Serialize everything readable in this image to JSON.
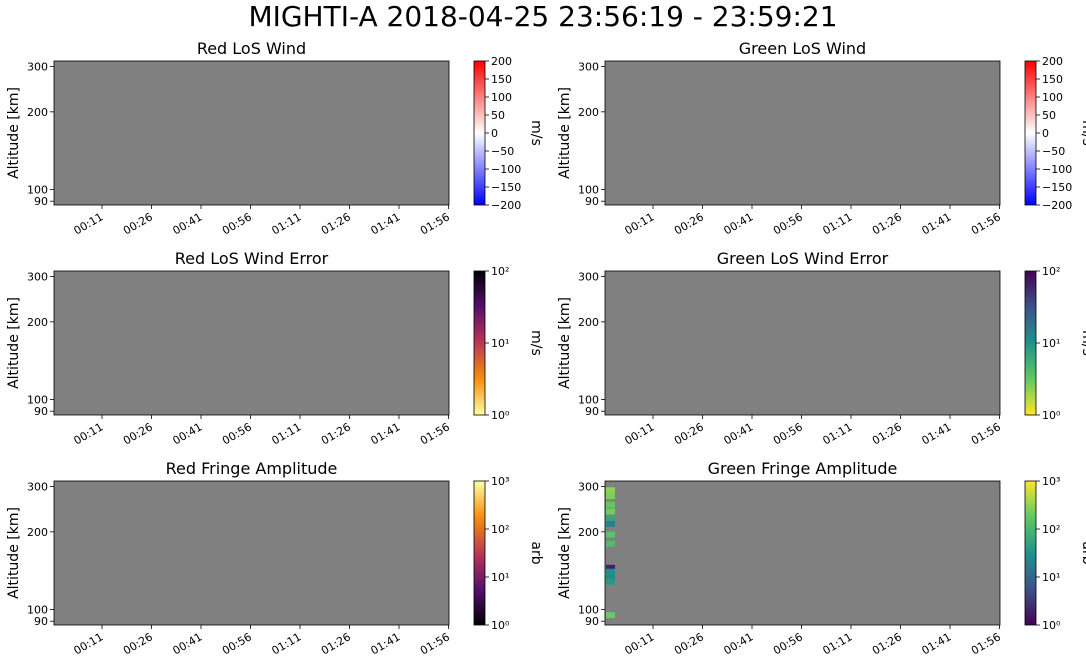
{
  "figure": {
    "title": "MIGHTI-A  2018-04-25 23:56:19 - 23:59:21",
    "background": "#ffffff",
    "axes_facecolor": "#808080"
  },
  "chart_data": [
    {
      "type": "heatmap",
      "title": "Red LoS Wind",
      "ylabel": "Altitude [km]",
      "yticks": [
        "300",
        "200",
        "100",
        "90"
      ],
      "xticks": [
        "00:11",
        "00:26",
        "00:41",
        "00:56",
        "01:11",
        "01:26",
        "01:41",
        "01:56"
      ],
      "colorbar": {
        "label": "m/s",
        "colormap": "bwr",
        "scale": "linear",
        "range": [
          -200,
          200
        ],
        "ticks": [
          "200",
          "150",
          "100",
          "50",
          "0",
          "−50",
          "−100",
          "−150",
          "−200"
        ],
        "colors": [
          "#0000ff",
          "#ffffff",
          "#ff0000"
        ]
      },
      "cells": []
    },
    {
      "type": "heatmap",
      "title": "Green LoS Wind",
      "ylabel": "Altitude [km]",
      "yticks": [
        "300",
        "200",
        "100",
        "90"
      ],
      "xticks": [
        "00:11",
        "00:26",
        "00:41",
        "00:56",
        "01:11",
        "01:26",
        "01:41",
        "01:56"
      ],
      "colorbar": {
        "label": "m/s",
        "colormap": "bwr",
        "scale": "linear",
        "range": [
          -200,
          200
        ],
        "ticks": [
          "200",
          "150",
          "100",
          "50",
          "0",
          "−50",
          "−100",
          "−150",
          "−200"
        ],
        "colors": [
          "#0000ff",
          "#ffffff",
          "#ff0000"
        ]
      },
      "cells": []
    },
    {
      "type": "heatmap",
      "title": "Red LoS Wind Error",
      "ylabel": "Altitude [km]",
      "yticks": [
        "300",
        "200",
        "100",
        "90"
      ],
      "xticks": [
        "00:11",
        "00:26",
        "00:41",
        "00:56",
        "01:11",
        "01:26",
        "01:41",
        "01:56"
      ],
      "colorbar": {
        "label": "m/s",
        "colormap": "inferno_r",
        "scale": "log",
        "range": [
          1,
          100
        ],
        "ticks": [
          "10²",
          "10¹",
          "10⁰"
        ],
        "colors": [
          "#fcffa4",
          "#f98e09",
          "#bc3754",
          "#57106e",
          "#000004"
        ]
      },
      "cells": []
    },
    {
      "type": "heatmap",
      "title": "Green LoS Wind Error",
      "ylabel": "Altitude [km]",
      "yticks": [
        "300",
        "200",
        "100",
        "90"
      ],
      "xticks": [
        "00:11",
        "00:26",
        "00:41",
        "00:56",
        "01:11",
        "01:26",
        "01:41",
        "01:56"
      ],
      "colorbar": {
        "label": "m/s",
        "colormap": "viridis_r",
        "scale": "log",
        "range": [
          1,
          100
        ],
        "ticks": [
          "10²",
          "10¹",
          "10⁰"
        ],
        "colors": [
          "#fde725",
          "#5ec962",
          "#21918c",
          "#3b528b",
          "#440154"
        ]
      },
      "cells": []
    },
    {
      "type": "heatmap",
      "title": "Red Fringe Amplitude",
      "ylabel": "Altitude [km]",
      "yticks": [
        "300",
        "200",
        "100",
        "90"
      ],
      "xticks": [
        "00:11",
        "00:26",
        "00:41",
        "00:56",
        "01:11",
        "01:26",
        "01:41",
        "01:56"
      ],
      "colorbar": {
        "label": "arb",
        "colormap": "inferno",
        "scale": "log",
        "range": [
          1,
          1000
        ],
        "ticks": [
          "10³",
          "10²",
          "10¹",
          "10⁰"
        ],
        "colors": [
          "#000004",
          "#57106e",
          "#bc3754",
          "#f98e09",
          "#fcffa4"
        ]
      },
      "cells": []
    },
    {
      "type": "heatmap",
      "title": "Green Fringe Amplitude",
      "ylabel": "Altitude [km]",
      "yticks": [
        "300",
        "200",
        "100",
        "90"
      ],
      "xticks": [
        "00:11",
        "00:26",
        "00:41",
        "00:56",
        "01:11",
        "01:26",
        "01:41",
        "01:56"
      ],
      "colorbar": {
        "label": "arb",
        "colormap": "viridis",
        "scale": "log",
        "range": [
          1,
          1000
        ],
        "ticks": [
          "10³",
          "10²",
          "10¹",
          "10⁰"
        ],
        "colors": [
          "#440154",
          "#3b528b",
          "#21918c",
          "#5ec962",
          "#fde725"
        ]
      },
      "cells": [
        {
          "alt": 290,
          "value": 300
        },
        {
          "alt": 275,
          "value": 250
        },
        {
          "alt": 255,
          "value": 180
        },
        {
          "alt": 240,
          "value": 220
        },
        {
          "alt": 225,
          "value": 60
        },
        {
          "alt": 215,
          "value": 20
        },
        {
          "alt": 195,
          "value": 160
        },
        {
          "alt": 180,
          "value": 120
        },
        {
          "alt": 145,
          "value": 2
        },
        {
          "alt": 140,
          "value": 30
        },
        {
          "alt": 133,
          "value": 25
        },
        {
          "alt": 128,
          "value": 40
        },
        {
          "alt": 95,
          "value": 200
        }
      ]
    }
  ]
}
